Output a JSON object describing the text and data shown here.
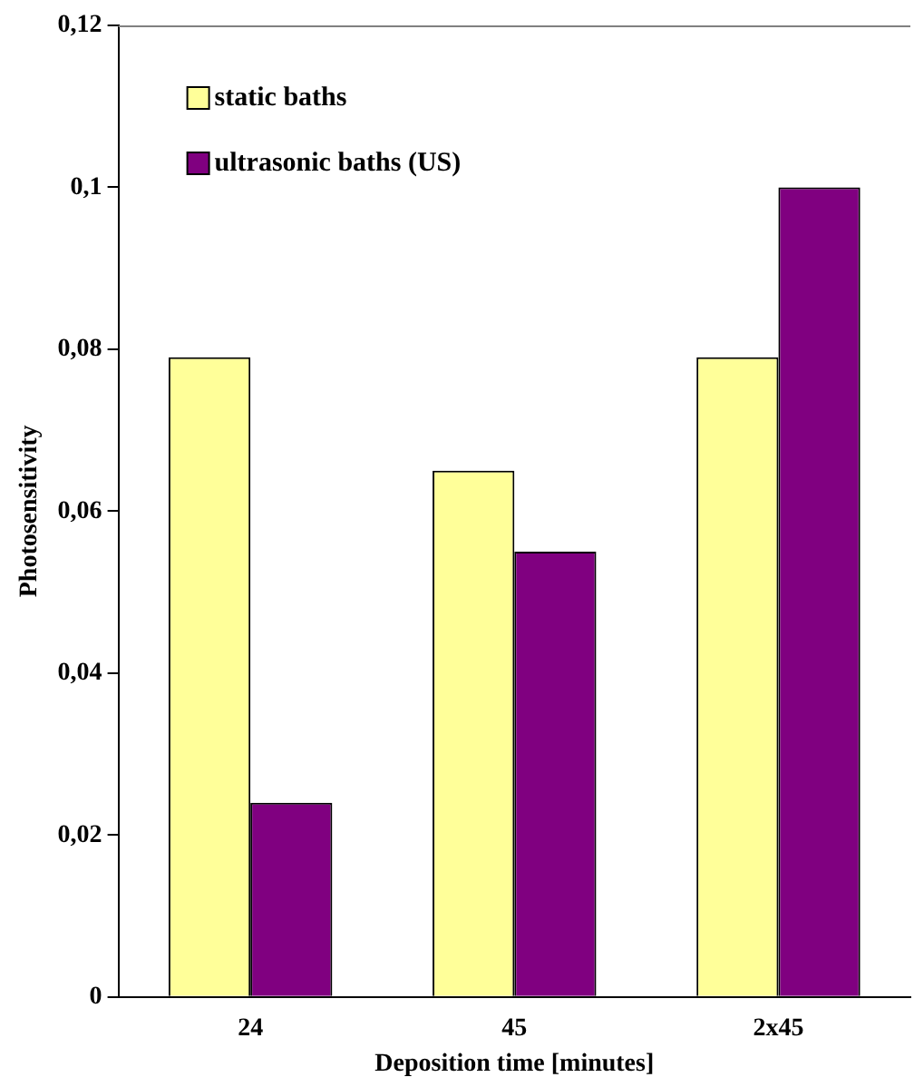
{
  "chart_data": {
    "type": "bar",
    "xlabel": "Deposition time [minutes]",
    "ylabel": "Photosensitivity",
    "categories": [
      "24",
      "45",
      "2x45"
    ],
    "series": [
      {
        "name": "static baths",
        "color": "#ffff99",
        "values": [
          0.079,
          0.065,
          0.079
        ]
      },
      {
        "name": "ultrasonic baths (US)",
        "color": "#800080",
        "values": [
          0.024,
          0.055,
          0.1
        ]
      }
    ],
    "ylim": [
      0,
      0.12
    ],
    "yticks": [
      0,
      {
        "value": 0.02,
        "label": "0,02"
      },
      {
        "value": 0.04,
        "label": "0,04"
      },
      {
        "value": 0.06,
        "label": "0,06"
      },
      {
        "value": 0.08,
        "label": "0,08"
      },
      {
        "value": 0.1,
        "label": "0,1"
      },
      {
        "value": 0.12,
        "label": "0,12"
      }
    ],
    "grid": false,
    "legend": "top left"
  }
}
